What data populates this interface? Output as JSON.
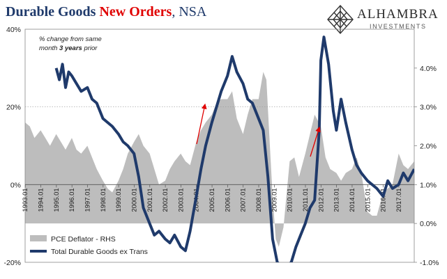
{
  "header": {
    "title_part1": "Durable Goods ",
    "title_part2": "New Orders",
    "title_part3": ", NSA"
  },
  "logo": {
    "name": "ALHAMBRA",
    "sub": "INVESTMENTS",
    "icon": "diamond-lattice-icon"
  },
  "note": {
    "line1": "% change from same",
    "line2_pre": "month ",
    "line2_bold": "3 years",
    "line2_post": " prior"
  },
  "chart_data": {
    "type": "line",
    "left_axis": {
      "range": [
        -20,
        40
      ],
      "ticks": [
        "-20%",
        "0%",
        "20%",
        "40%"
      ]
    },
    "right_axis": {
      "range": [
        -1.0,
        5.0
      ],
      "ticks": [
        "-1.0%",
        "0.0%",
        "1.0%",
        "2.0%",
        "3.0%",
        "4.0%"
      ]
    },
    "x_ticks": [
      "1993.01",
      "1994.01",
      "1995.01",
      "1996.01",
      "1997.01",
      "1998.01",
      "1999.01",
      "2000.01",
      "2001.01",
      "2002.01",
      "2003.01",
      "2004.01",
      "2005.01",
      "2006.01",
      "2007.01",
      "2008.01",
      "2009.01",
      "2010.01",
      "2011.01",
      "2012.01",
      "2013.01",
      "2014.01",
      "2015.01",
      "2016.01",
      "2017.01"
    ],
    "x_range": [
      1993.0,
      2018.0
    ],
    "gridlines": [
      20
    ],
    "legend_position": "bottom-left",
    "series": [
      {
        "name": "PCE Deflator - RHS",
        "style": "area",
        "axis": "right",
        "color": "#bdbdbd",
        "x": [
          1993.0,
          1993.3,
          1993.6,
          1994.0,
          1994.3,
          1994.6,
          1995.0,
          1995.3,
          1995.6,
          1996.0,
          1996.3,
          1996.6,
          1997.0,
          1997.3,
          1997.6,
          1998.0,
          1998.3,
          1998.6,
          1999.0,
          1999.3,
          1999.6,
          2000.0,
          2000.3,
          2000.6,
          2001.0,
          2001.3,
          2001.6,
          2002.0,
          2002.3,
          2002.6,
          2003.0,
          2003.3,
          2003.6,
          2004.0,
          2004.3,
          2004.6,
          2005.0,
          2005.3,
          2005.6,
          2006.0,
          2006.3,
          2006.6,
          2007.0,
          2007.3,
          2007.6,
          2008.0,
          2008.3,
          2008.5,
          2008.7,
          2008.9,
          2009.1,
          2009.3,
          2009.6,
          2010.0,
          2010.3,
          2010.6,
          2011.0,
          2011.3,
          2011.6,
          2012.0,
          2012.3,
          2012.6,
          2013.0,
          2013.3,
          2013.6,
          2014.0,
          2014.3,
          2014.6,
          2015.0,
          2015.3,
          2015.6,
          2016.0,
          2016.3,
          2016.6,
          2017.0,
          2017.3,
          2017.6,
          2018.0
        ],
        "values": [
          2.6,
          2.5,
          2.2,
          2.4,
          2.2,
          2.0,
          2.3,
          2.1,
          1.9,
          2.2,
          1.9,
          1.8,
          2.0,
          1.7,
          1.4,
          1.1,
          0.9,
          0.8,
          1.1,
          1.4,
          1.8,
          2.1,
          2.3,
          2.0,
          1.8,
          1.4,
          1.0,
          1.1,
          1.4,
          1.6,
          1.8,
          1.6,
          1.5,
          2.1,
          2.4,
          2.6,
          2.8,
          3.1,
          3.2,
          3.2,
          3.4,
          2.7,
          2.3,
          2.8,
          3.2,
          3.2,
          3.9,
          3.7,
          2.2,
          0.7,
          -0.4,
          -0.6,
          -0.1,
          1.6,
          1.7,
          1.2,
          1.8,
          2.3,
          2.8,
          2.5,
          1.7,
          1.4,
          1.3,
          1.1,
          1.3,
          1.4,
          1.7,
          1.3,
          0.3,
          0.2,
          0.2,
          0.8,
          0.9,
          1.0,
          1.8,
          1.5,
          1.4,
          1.6
        ]
      },
      {
        "name": "Total Durable Goods ex Trans",
        "style": "line",
        "axis": "left",
        "color": "#1f3a6b",
        "x": [
          1995.0,
          1995.2,
          1995.4,
          1995.6,
          1995.8,
          1996.0,
          1996.3,
          1996.6,
          1997.0,
          1997.3,
          1997.6,
          1998.0,
          1998.3,
          1998.6,
          1999.0,
          1999.3,
          1999.6,
          2000.0,
          2000.3,
          2000.6,
          2001.0,
          2001.3,
          2001.6,
          2002.0,
          2002.3,
          2002.6,
          2003.0,
          2003.3,
          2003.6,
          2004.0,
          2004.3,
          2004.6,
          2005.0,
          2005.3,
          2005.6,
          2006.0,
          2006.3,
          2006.6,
          2007.0,
          2007.3,
          2007.6,
          2008.0,
          2008.3,
          2008.6,
          2008.9,
          2009.2,
          2009.5,
          2009.8,
          2010.1,
          2010.4,
          2010.7,
          2011.0,
          2011.3,
          2011.6,
          2011.9,
          2012.0,
          2012.2,
          2012.5,
          2012.8,
          2013.0,
          2013.3,
          2013.6,
          2014.0,
          2014.3,
          2014.6,
          2015.0,
          2015.3,
          2015.6,
          2016.0,
          2016.3,
          2016.6,
          2017.0,
          2017.3,
          2017.6,
          2018.0
        ],
        "values": [
          30,
          27,
          31,
          25,
          29,
          28,
          26,
          24,
          25,
          22,
          21,
          17,
          16,
          15,
          13,
          11,
          10,
          8,
          2,
          -6,
          -10,
          -13,
          -12,
          -14,
          -15,
          -13,
          -16,
          -17,
          -12,
          -3,
          4,
          10,
          16,
          20,
          24,
          28,
          33,
          29,
          26,
          22,
          21,
          17,
          14,
          2,
          -14,
          -20,
          -21,
          -21,
          -20,
          -16,
          -13,
          -10,
          -6,
          -4,
          14,
          32,
          38,
          31,
          19,
          14,
          22,
          16,
          9,
          5,
          3,
          1,
          0,
          -1,
          -3,
          1,
          -1,
          0,
          3,
          1,
          4
        ]
      }
    ]
  }
}
